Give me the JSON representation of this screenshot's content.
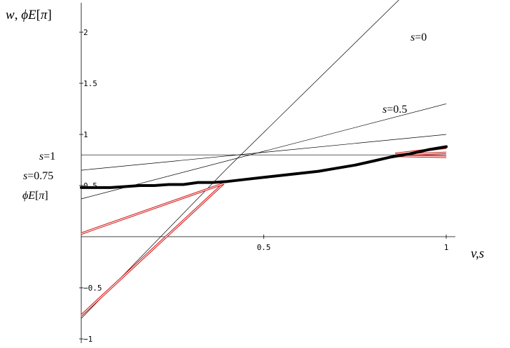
{
  "chart_data": {
    "type": "line",
    "title": "",
    "ylabel_parts": [
      "w, ",
      "ϕ",
      "E",
      "[",
      "π",
      "]"
    ],
    "xlabel": "v,s",
    "xlim": [
      0,
      1.0
    ],
    "ylim": [
      -1.0,
      2.2
    ],
    "x_ticks": [
      {
        "v": 0.5,
        "label": "0.5"
      },
      {
        "v": 1.0,
        "label": "1"
      }
    ],
    "y_ticks": [
      {
        "v": -1.0,
        "label": "-1"
      },
      {
        "v": -0.5,
        "label": "-0.5"
      },
      {
        "v": 0.5,
        "label": "0.5"
      },
      {
        "v": 1.0,
        "label": "1"
      },
      {
        "v": 1.5,
        "label": "1.5"
      },
      {
        "v": 2.0,
        "label": "2"
      }
    ],
    "line_labels": [
      {
        "text": "s=0",
        "for": "s=0"
      },
      {
        "text": "s=0.5",
        "for": "s=0.5"
      },
      {
        "text": "s=1",
        "for": "s=1"
      },
      {
        "text": "s=0.75",
        "for": "s=0.75"
      },
      {
        "text": "ϕE[π]",
        "for": "phiE"
      }
    ],
    "series": [
      {
        "id": "s=0",
        "style": "thin-black",
        "x": [
          0.0,
          0.4,
          1.0
        ],
        "y": [
          -0.8,
          0.67,
          2.77
        ]
      },
      {
        "id": "s=0.5",
        "style": "thin-black",
        "x": [
          0.0,
          1.0
        ],
        "y": [
          0.37,
          1.3
        ]
      },
      {
        "id": "s=0.75",
        "style": "thin-black",
        "x": [
          0.0,
          1.0
        ],
        "y": [
          0.65,
          1.0
        ]
      },
      {
        "id": "s=1",
        "style": "thin-black",
        "x": [
          0.0,
          1.0
        ],
        "y": [
          0.8,
          0.8
        ]
      },
      {
        "id": "red-low",
        "style": "red-double",
        "x": [
          0.0,
          0.39
        ],
        "y": [
          -0.77,
          0.52
        ]
      },
      {
        "id": "red-mid",
        "style": "red-double",
        "x": [
          0.0,
          0.39
        ],
        "y": [
          0.03,
          0.52
        ]
      },
      {
        "id": "red-tail-1",
        "style": "red-double",
        "x": [
          0.86,
          1.0
        ],
        "y": [
          0.81,
          0.87
        ]
      },
      {
        "id": "red-tail-2",
        "style": "red-double",
        "x": [
          0.86,
          1.0
        ],
        "y": [
          0.8,
          0.82
        ]
      },
      {
        "id": "red-tail-3",
        "style": "red-double",
        "x": [
          0.86,
          1.0
        ],
        "y": [
          0.79,
          0.78
        ]
      },
      {
        "id": "phiE",
        "style": "thick-black",
        "x": [
          0.0,
          0.04,
          0.08,
          0.12,
          0.16,
          0.2,
          0.24,
          0.28,
          0.32,
          0.36,
          0.4,
          0.45,
          0.5,
          0.55,
          0.6,
          0.65,
          0.7,
          0.75,
          0.8,
          0.85,
          0.9,
          0.95,
          1.0
        ],
        "y": [
          0.48,
          0.48,
          0.48,
          0.49,
          0.5,
          0.5,
          0.51,
          0.51,
          0.53,
          0.53,
          0.54,
          0.56,
          0.58,
          0.6,
          0.62,
          0.64,
          0.67,
          0.7,
          0.74,
          0.78,
          0.81,
          0.85,
          0.88
        ]
      }
    ],
    "grid": false,
    "legend": "none"
  }
}
